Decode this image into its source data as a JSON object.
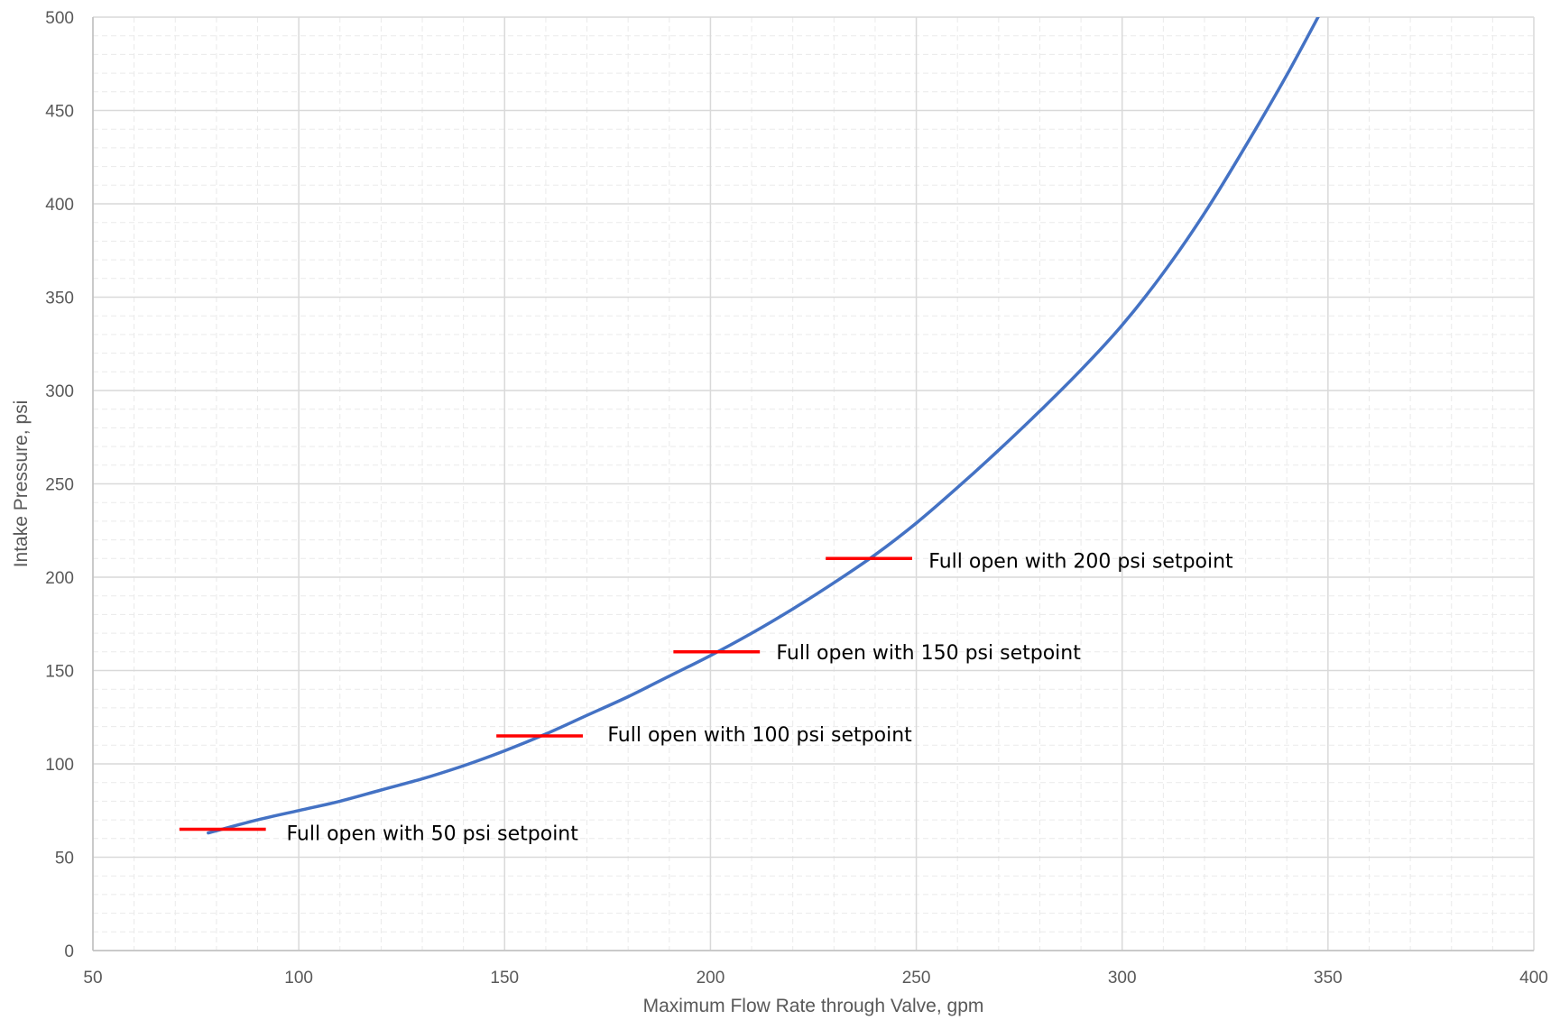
{
  "chart_data": {
    "type": "line",
    "title": "",
    "xlabel": "Maximum Flow Rate through Valve, gpm",
    "ylabel": "Intake Pressure, psi",
    "xlim": [
      50,
      400
    ],
    "ylim": [
      0,
      500
    ],
    "x_ticks": [
      50,
      100,
      150,
      200,
      250,
      300,
      350,
      400
    ],
    "y_ticks": [
      0,
      50,
      100,
      150,
      200,
      250,
      300,
      350,
      400,
      450,
      500
    ],
    "x_minor_step": 10,
    "y_minor_step": 10,
    "grid": true,
    "legend": "none",
    "series": [
      {
        "color": "#4472C4",
        "x": [
          78,
          90,
          100,
          110,
          120,
          130,
          140,
          150,
          160,
          170,
          180,
          190,
          200,
          210,
          220,
          230,
          240,
          250,
          260,
          270,
          280,
          290,
          300,
          310,
          320,
          330,
          340,
          350,
          354
        ],
        "y": [
          63,
          70,
          75,
          80,
          86,
          92,
          99,
          107,
          116,
          126,
          136,
          147,
          158,
          170,
          183,
          197,
          212,
          229,
          248,
          268,
          289,
          311,
          335,
          363,
          395,
          431,
          469,
          510,
          526
        ]
      }
    ],
    "markers": [
      {
        "x1": 71,
        "x2": 92,
        "y": 65,
        "color": "#FF0000"
      },
      {
        "x1": 148,
        "x2": 169,
        "y": 115,
        "color": "#FF0000"
      },
      {
        "x1": 191,
        "x2": 212,
        "y": 160,
        "color": "#FF0000"
      },
      {
        "x1": 228,
        "x2": 249,
        "y": 210,
        "color": "#FF0000"
      }
    ],
    "annotations": [
      {
        "text": "Full open with 50 psi setpoint",
        "x": 97,
        "y": 63
      },
      {
        "text": "Full open with 100 psi setpoint",
        "x": 175,
        "y": 116
      },
      {
        "text": "Full open with 150 psi setpoint",
        "x": 216,
        "y": 160
      },
      {
        "text": "Full open with 200 psi setpoint",
        "x": 253,
        "y": 209
      }
    ],
    "colors": {
      "major_grid": "#D9D9D9",
      "minor_grid": "#EAEAEA",
      "axis": "#BFBFBF"
    }
  }
}
